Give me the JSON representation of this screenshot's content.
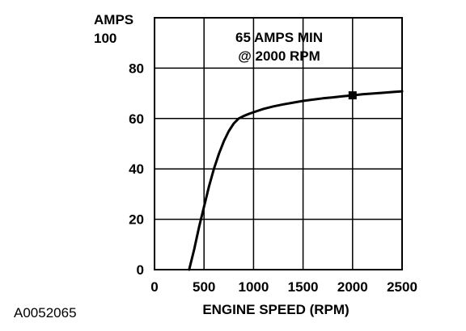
{
  "figure_id": "A0052065",
  "chart_data": {
    "type": "line",
    "title": "",
    "xlabel": "ENGINE SPEED (RPM)",
    "ylabel": "AMPS",
    "xlim": [
      0,
      2500
    ],
    "ylim": [
      0,
      100
    ],
    "xticks": [
      0,
      500,
      1000,
      1500,
      2000,
      2500
    ],
    "yticks": [
      0,
      20,
      40,
      60,
      80,
      100
    ],
    "xtick_labels": [
      "0",
      "500",
      "1000",
      "1500",
      "2000",
      "2500"
    ],
    "ytick_labels": [
      "0",
      "20",
      "40",
      "60",
      "80",
      "100"
    ],
    "grid": true,
    "annotation": {
      "line1": "65 AMPS MIN",
      "line2": "@ 2000 RPM"
    },
    "series": [
      {
        "x": [
          350,
          400,
          450,
          500,
          550,
          600,
          650,
          700,
          750,
          800,
          850,
          900,
          950,
          1000,
          1100,
          1200,
          1300,
          1400,
          1500,
          1600,
          1700,
          1800,
          1900,
          2000,
          2100,
          2200,
          2300,
          2400,
          2500
        ],
        "y": [
          0,
          8,
          17,
          25,
          33,
          40,
          46,
          51,
          55,
          58,
          60,
          61,
          61.8,
          62.5,
          63.8,
          64.8,
          65.6,
          66.3,
          67,
          67.5,
          68,
          68.4,
          68.8,
          69.2,
          69.6,
          69.9,
          70.2,
          70.5,
          70.8
        ]
      }
    ],
    "marker": {
      "x": 2000,
      "y": 69.2
    }
  }
}
